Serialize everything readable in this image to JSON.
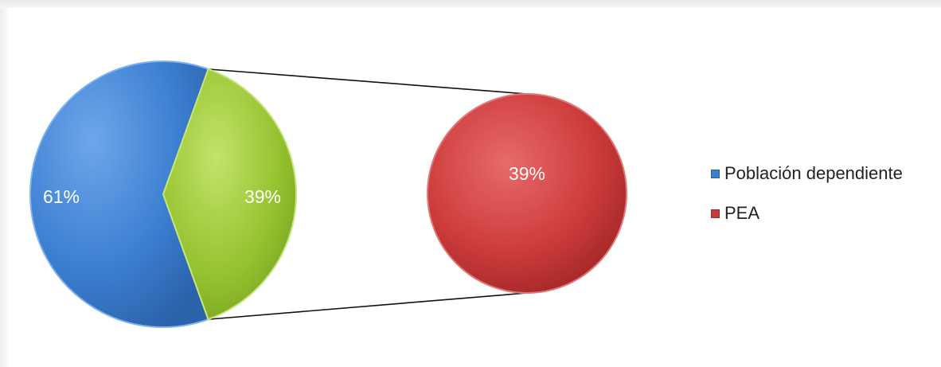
{
  "chart_data": {
    "type": "pie",
    "subtype": "pie-of-pie",
    "main_pie": {
      "slices": [
        {
          "name": "Población dependiente",
          "value": 61,
          "label": "61%",
          "color": "#3c7fd1"
        },
        {
          "name": "PEA",
          "value": 39,
          "label": "39%",
          "color": "#95c22f"
        }
      ]
    },
    "secondary_pie": {
      "slices": [
        {
          "name": "PEA",
          "value": 39,
          "label": "39%",
          "color": "#cc3b3b"
        }
      ]
    },
    "legend": {
      "position": "right",
      "entries": [
        {
          "label": "Población dependiente",
          "color": "#3c7fd1"
        },
        {
          "label": "PEA",
          "color": "#cc3b3b"
        }
      ]
    }
  }
}
